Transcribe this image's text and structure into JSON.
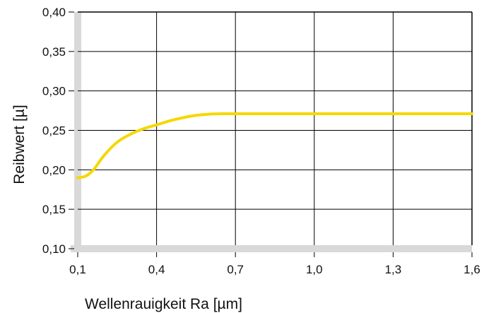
{
  "chart_data": {
    "type": "line",
    "title": "",
    "xlabel": "Wellenrauigkeit Ra [µm]",
    "ylabel": "Reibwert [µ]",
    "xlim": [
      0.1,
      1.6
    ],
    "ylim": [
      0.1,
      0.4
    ],
    "x_ticks": [
      0.1,
      0.4,
      0.7,
      1.0,
      1.3,
      1.6
    ],
    "x_tick_labels": [
      "0,1",
      "0,4",
      "0,7",
      "1,0",
      "1,3",
      "1,6"
    ],
    "y_ticks": [
      0.1,
      0.15,
      0.2,
      0.25,
      0.3,
      0.35,
      0.4
    ],
    "y_tick_labels": [
      "0,10",
      "0,15",
      "0,20",
      "0,25",
      "0,30",
      "0,35",
      "0,40"
    ],
    "grid": true,
    "series": [
      {
        "color": "#F5D800",
        "x": [
          0.1,
          0.13,
          0.16,
          0.2,
          0.25,
          0.3,
          0.35,
          0.4,
          0.45,
          0.5,
          0.55,
          0.6,
          0.65,
          0.7,
          1.0,
          1.3,
          1.6
        ],
        "y": [
          0.19,
          0.192,
          0.2,
          0.218,
          0.235,
          0.245,
          0.252,
          0.257,
          0.262,
          0.266,
          0.269,
          0.2705,
          0.271,
          0.271,
          0.271,
          0.271,
          0.271
        ]
      }
    ],
    "axis_band_color": "#D9D9D9",
    "grid_color": "#000000"
  }
}
